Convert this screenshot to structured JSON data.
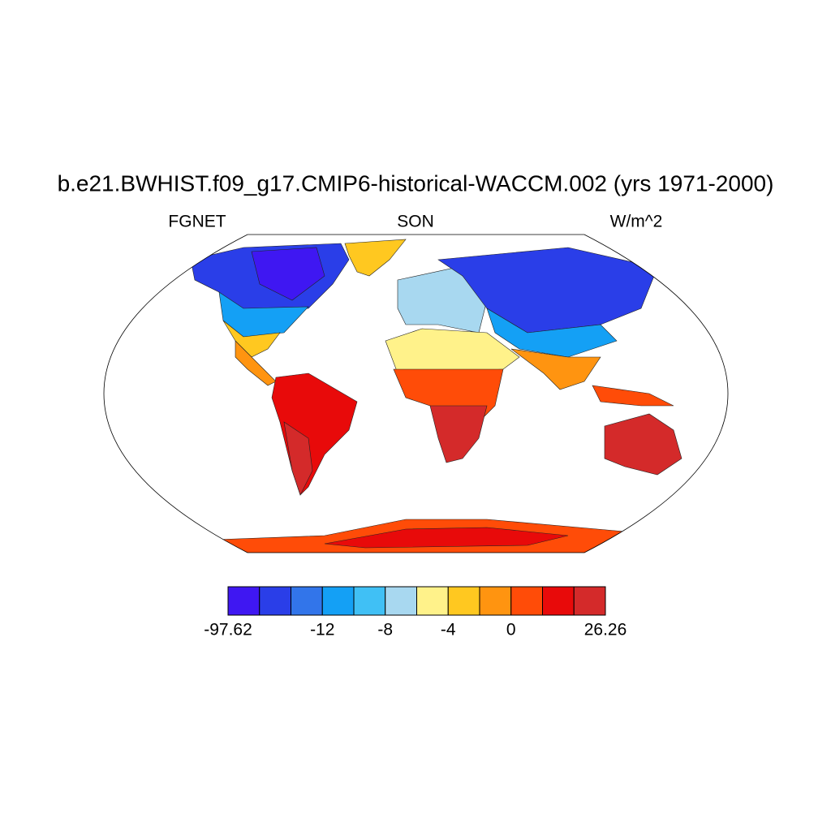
{
  "chart_data": {
    "type": "map",
    "title": "b.e21.BWHIST.f09_g17.CMIP6-historical-WACCM.002 (yrs 1971-2000)",
    "left_label": "FGNET",
    "center_label": "SON",
    "right_label": "W/m^2",
    "colorbar": {
      "colors": [
        "#3f17f2",
        "#2a3ee8",
        "#3275ea",
        "#14a0f5",
        "#40c0f5",
        "#a8d8f0",
        "#fff28a",
        "#ffc820",
        "#ff9410",
        "#ff4c08",
        "#e80a0a",
        "#d42a2a"
      ],
      "ticks": [
        -97.62,
        -12,
        -8,
        -4,
        0,
        26.26
      ],
      "tick_edges": [
        0,
        3,
        5,
        7,
        9,
        12
      ]
    }
  }
}
